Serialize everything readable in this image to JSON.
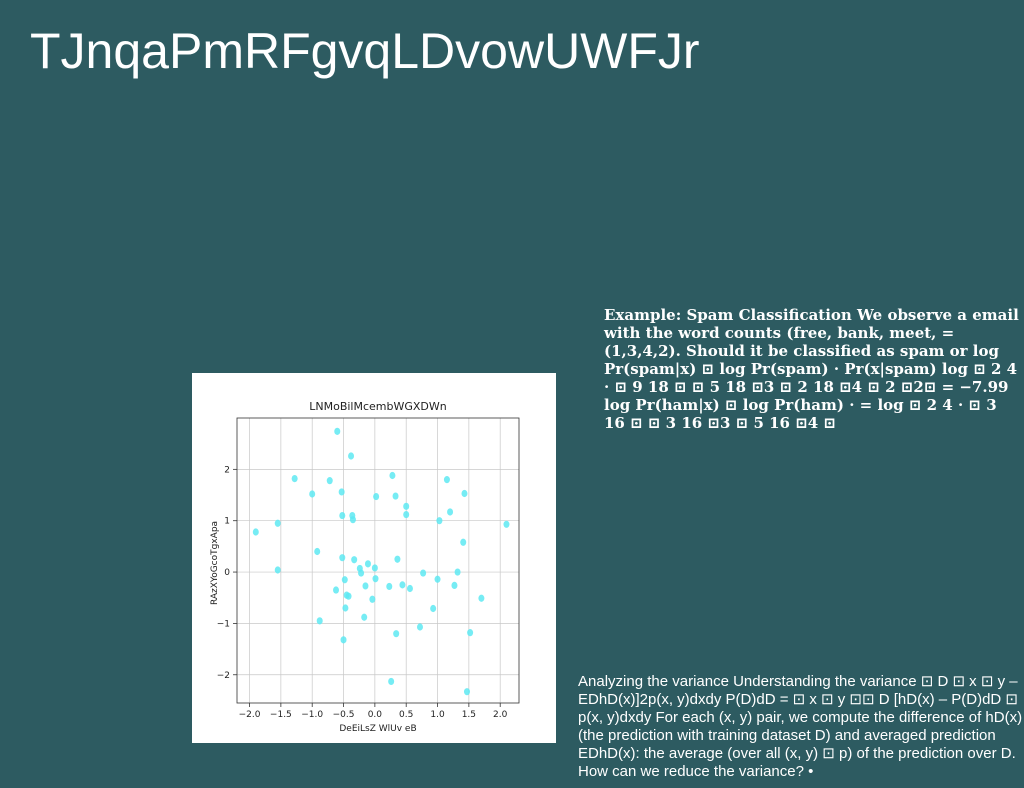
{
  "slide": {
    "title": "TJnqaPmRFgvqLDvowUWFJr",
    "example_text": "Example: Spam Classification We observe a email with the word counts (free, bank, meet, = (1,3,4,2). Should it be classified as spam or log Pr(spam|x) ⊡ log Pr(spam) · Pr(x|spam) log ⊡ 2 4 · ⊡ 9 18 ⊡ ⊡ 5 18 ⊡3 ⊡ 2 18 ⊡4 ⊡ 2 ⊡2⊡ = −7.99 log Pr(ham|x) ⊡ log Pr(ham) · = log ⊡ 2 4 · ⊡ 3 16 ⊡ ⊡ 3 16 ⊡3 ⊡ 5 16 ⊡4 ⊡",
    "variance_text": "Analyzing the variance Understanding the variance ⊡ D ⊡ x ⊡ y – EDhD(x)]2p(x, y)dxdy P(D)dD = ⊡ x ⊡ y ⊡⊡ D [hD(x) – P(D)dD ⊡ p(x, y)dxdy For each (x, y) pair, we compute the difference of hD(x) (the prediction with training dataset D) and averaged prediction EDhD(x): the average (over all (x, y) ⊡ p) of the prediction over D. How can we reduce the variance? •"
  },
  "chart_data": {
    "type": "scatter",
    "title": "LNMoBilMcembWGXDWn",
    "xlabel": "DeEiLsZ WlUv eB",
    "ylabel": "RAzXYoGcoTgxApa",
    "xlim": [
      -2.2,
      2.3
    ],
    "ylim": [
      -2.55,
      3.0
    ],
    "xticks": [
      -2.0,
      -1.5,
      -1.0,
      -0.5,
      0.0,
      0.5,
      1.0,
      1.5,
      2.0
    ],
    "yticks": [
      -2,
      -1,
      0,
      1,
      2
    ],
    "grid": true,
    "point_color": "#5ee9f2",
    "points": [
      [
        -1.9,
        0.78
      ],
      [
        -1.55,
        0.95
      ],
      [
        -1.55,
        0.04
      ],
      [
        -1.28,
        1.82
      ],
      [
        -1.0,
        1.52
      ],
      [
        -0.92,
        0.4
      ],
      [
        -0.88,
        -0.95
      ],
      [
        -0.72,
        1.78
      ],
      [
        -0.62,
        -0.35
      ],
      [
        -0.6,
        2.74
      ],
      [
        -0.53,
        1.56
      ],
      [
        -0.52,
        1.1
      ],
      [
        -0.52,
        0.28
      ],
      [
        -0.5,
        -1.32
      ],
      [
        -0.48,
        -0.15
      ],
      [
        -0.47,
        -0.7
      ],
      [
        -0.45,
        -0.45
      ],
      [
        -0.42,
        -0.47
      ],
      [
        -0.38,
        2.26
      ],
      [
        -0.36,
        1.1
      ],
      [
        -0.35,
        1.02
      ],
      [
        -0.33,
        0.24
      ],
      [
        -0.24,
        0.07
      ],
      [
        -0.22,
        -0.02
      ],
      [
        -0.17,
        -0.88
      ],
      [
        -0.15,
        -0.27
      ],
      [
        -0.11,
        0.16
      ],
      [
        -0.04,
        -0.53
      ],
      [
        0.0,
        0.08
      ],
      [
        0.01,
        -0.13
      ],
      [
        0.02,
        1.47
      ],
      [
        0.23,
        -0.28
      ],
      [
        0.26,
        -2.13
      ],
      [
        0.28,
        1.88
      ],
      [
        0.33,
        1.48
      ],
      [
        0.34,
        -1.2
      ],
      [
        0.36,
        0.25
      ],
      [
        0.44,
        -0.25
      ],
      [
        0.5,
        1.28
      ],
      [
        0.5,
        1.12
      ],
      [
        0.56,
        -0.32
      ],
      [
        0.72,
        -1.07
      ],
      [
        0.77,
        -0.02
      ],
      [
        0.93,
        -0.71
      ],
      [
        1.0,
        -0.14
      ],
      [
        1.03,
        1.0
      ],
      [
        1.15,
        1.8
      ],
      [
        1.2,
        1.17
      ],
      [
        1.27,
        -0.26
      ],
      [
        1.32,
        0.0
      ],
      [
        1.41,
        0.58
      ],
      [
        1.43,
        1.53
      ],
      [
        1.47,
        -2.33
      ],
      [
        1.52,
        -1.18
      ],
      [
        1.7,
        -0.51
      ],
      [
        2.1,
        0.93
      ]
    ]
  }
}
